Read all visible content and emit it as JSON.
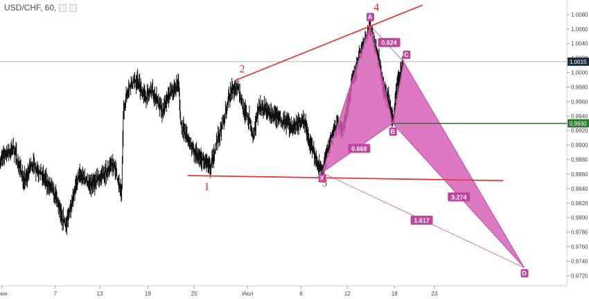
{
  "header": {
    "symbol_label": "USD/CHF, 60,",
    "icons": [
      "visibility-toggle-icon",
      "settings-icon"
    ]
  },
  "colors": {
    "price": "#111111",
    "pattern_fill": "#d45cb5",
    "pattern_line": "#c2449f",
    "trendline": "#e53935",
    "green_level": "#2e7d32",
    "number_labels": "#d32f2f"
  },
  "chart_data": {
    "type": "line",
    "series_kind": "candlestick-ohlc (dense)",
    "y_axis": {
      "ylim": [
        0.9706,
        1.01
      ],
      "ticks": [
        "1.0080",
        "1.0060",
        "1.0040",
        "1.0020",
        "1.0000",
        "0.9980",
        "0.9960",
        "0.9940",
        "0.9920",
        "0.9900",
        "0.9880",
        "0.9860",
        "0.9840",
        "0.9820",
        "0.9800",
        "0.9780",
        "0.9760",
        "0.9740",
        "0.9720"
      ],
      "markers": [
        {
          "label": "1.0015",
          "value": 1.0015,
          "style": "dark"
        },
        {
          "label": "0.9930",
          "value": 0.993,
          "style": "green"
        }
      ]
    },
    "x_axis": {
      "ticks": [
        {
          "label": "Июн",
          "t": 0.2
        },
        {
          "label": "7",
          "t": 6.1
        },
        {
          "label": "13",
          "t": 11.0
        },
        {
          "label": "19",
          "t": 16.3
        },
        {
          "label": "25",
          "t": 21.4
        },
        {
          "label": "Июл",
          "t": 27.3
        },
        {
          "label": "6",
          "t": 33.2
        },
        {
          "label": "12",
          "t": 38.3
        },
        {
          "label": "18",
          "t": 43.5
        },
        {
          "label": "23",
          "t": 47.9
        }
      ],
      "tlim": [
        0,
        62.5
      ]
    },
    "price_path": [
      [
        0,
        0.988
      ],
      [
        1.5,
        0.9895
      ],
      [
        2.7,
        0.985
      ],
      [
        3.5,
        0.9875
      ],
      [
        4.5,
        0.986
      ],
      [
        5.3,
        0.9845
      ],
      [
        6.1,
        0.983
      ],
      [
        6.8,
        0.98
      ],
      [
        7.3,
        0.979
      ],
      [
        8.0,
        0.983
      ],
      [
        8.8,
        0.986
      ],
      [
        10.0,
        0.9845
      ],
      [
        11.4,
        0.986
      ],
      [
        12.5,
        0.9875
      ],
      [
        13.4,
        0.983
      ],
      [
        13.6,
        0.995
      ],
      [
        14.2,
        0.998
      ],
      [
        15.1,
        0.999
      ],
      [
        16.0,
        0.9965
      ],
      [
        16.8,
        0.9975
      ],
      [
        17.9,
        0.9945
      ],
      [
        18.6,
        0.997
      ],
      [
        19.7,
        0.9985
      ],
      [
        19.9,
        0.993
      ],
      [
        20.8,
        0.9905
      ],
      [
        21.4,
        0.989
      ],
      [
        22.5,
        0.9878
      ],
      [
        23.2,
        0.9868
      ],
      [
        23.8,
        0.99
      ],
      [
        24.7,
        0.9935
      ],
      [
        25.3,
        0.997
      ],
      [
        26.2,
        0.9982
      ],
      [
        26.8,
        0.995
      ],
      [
        27.5,
        0.9935
      ],
      [
        27.9,
        0.9905
      ],
      [
        28.5,
        0.9955
      ],
      [
        29.6,
        0.9945
      ],
      [
        30.5,
        0.9938
      ],
      [
        31.3,
        0.993
      ],
      [
        32.3,
        0.9925
      ],
      [
        33.5,
        0.9935
      ],
      [
        34.1,
        0.9905
      ],
      [
        34.9,
        0.988
      ],
      [
        35.5,
        0.9862
      ],
      [
        36.5,
        0.991
      ],
      [
        37.2,
        0.993
      ],
      [
        37.8,
        0.992
      ],
      [
        38.4,
        0.996
      ],
      [
        38.9,
        0.999
      ],
      [
        39.6,
        1.0025
      ],
      [
        40.1,
        1.004
      ],
      [
        40.8,
        1.0065
      ],
      [
        41.3,
        1.004
      ],
      [
        41.9,
        1.001
      ],
      [
        42.3,
        0.9975
      ],
      [
        42.9,
        0.996
      ],
      [
        43.3,
        0.993
      ],
      [
        43.8,
        0.9985
      ],
      [
        44.5,
        1.0015
      ]
    ],
    "harmonic_pattern": {
      "points": [
        {
          "label": "X",
          "t": 35.5,
          "value": 0.9862
        },
        {
          "label": "A",
          "t": 40.8,
          "value": 1.0065
        },
        {
          "label": "B",
          "t": 43.3,
          "value": 0.993
        },
        {
          "label": "C",
          "t": 44.5,
          "value": 1.0015
        },
        {
          "label": "D",
          "t": 57.8,
          "value": 0.9731
        }
      ],
      "ratios": [
        {
          "label": "0.624",
          "t": 42.9,
          "value": 1.0041
        },
        {
          "label": "0.668",
          "t": 39.6,
          "value": 0.9895
        },
        {
          "label": "3.274",
          "t": 50.6,
          "value": 0.9828
        },
        {
          "label": "1.617",
          "t": 46.5,
          "value": 0.9796
        }
      ]
    },
    "trendlines": [
      {
        "name": "upper",
        "from": [
          26.1,
          0.999
        ],
        "to": [
          46.6,
          1.0093
        ]
      },
      {
        "name": "lower",
        "from": [
          20.7,
          0.9858
        ],
        "to": [
          55.5,
          0.9851
        ]
      }
    ],
    "levels": [
      {
        "name": "green",
        "from_t": 43.3,
        "value": 0.993
      },
      {
        "name": "dark",
        "from_t": 0,
        "value": 1.0015
      }
    ],
    "annotations": [
      {
        "label": "1",
        "t": 22.8,
        "value": 0.9838
      },
      {
        "label": "2",
        "t": 26.7,
        "value": 1.0
      },
      {
        "label": "3",
        "t": 35.8,
        "value": 0.9843
      },
      {
        "label": "4",
        "t": 41.5,
        "value": 1.0085
      }
    ]
  }
}
